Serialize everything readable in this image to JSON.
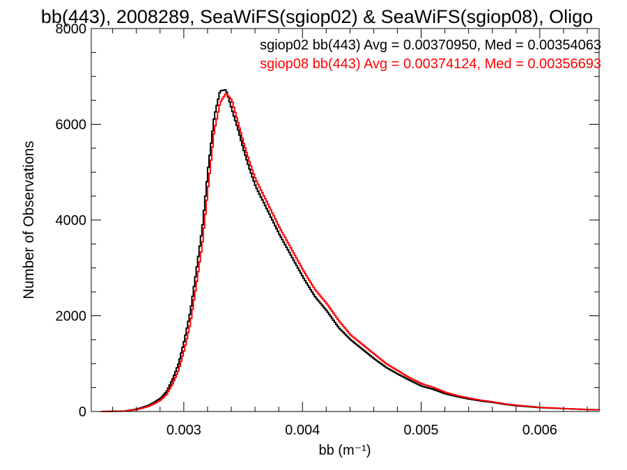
{
  "chart_data": {
    "type": "line",
    "title": "bb(443), 2008289, SeaWiFS(sgiop02) & SeaWiFS(sgiop08), Oligo",
    "xlabel": "bb (m⁻¹)",
    "ylabel": "Number of Observations",
    "xlim": [
      0.00222,
      0.0065
    ],
    "ylim": [
      0,
      8000
    ],
    "xticks": [
      0.003,
      0.004,
      0.005,
      0.006
    ],
    "xtick_labels": [
      "0.003",
      "0.004",
      "0.005",
      "0.006"
    ],
    "yticks": [
      0,
      2000,
      4000,
      6000,
      8000
    ],
    "ytick_labels": [
      "0",
      "2000",
      "4000",
      "6000",
      "8000"
    ],
    "grid": false,
    "legend_position": "top-right",
    "series": [
      {
        "name": "sgiop02",
        "label": "sgiop02 bb(443) Avg = 0.00370950, Med = 0.00354063",
        "color": "#000000",
        "x": [
          0.0023,
          0.0025,
          0.0026,
          0.0027,
          0.00275,
          0.0028,
          0.00285,
          0.0029,
          0.00295,
          0.003,
          0.00305,
          0.0031,
          0.00315,
          0.0032,
          0.00325,
          0.0033,
          0.00335,
          0.0034,
          0.00345,
          0.0035,
          0.00355,
          0.0036,
          0.0037,
          0.0038,
          0.0039,
          0.004,
          0.0041,
          0.0042,
          0.0043,
          0.0044,
          0.0045,
          0.0046,
          0.0047,
          0.0048,
          0.0049,
          0.005,
          0.0051,
          0.0052,
          0.0053,
          0.0054,
          0.0055,
          0.0056,
          0.0057,
          0.0058,
          0.0059,
          0.006,
          0.0061,
          0.0062,
          0.0063,
          0.0064,
          0.0065
        ],
        "values": [
          0,
          10,
          50,
          130,
          200,
          280,
          420,
          680,
          1000,
          1500,
          2100,
          2950,
          3850,
          5100,
          6150,
          6700,
          6720,
          6300,
          5900,
          5450,
          5050,
          4700,
          4200,
          3700,
          3250,
          2800,
          2400,
          2100,
          1750,
          1500,
          1300,
          1100,
          920,
          780,
          650,
          530,
          460,
          370,
          310,
          260,
          220,
          190,
          150,
          120,
          100,
          80,
          70,
          60,
          50,
          40,
          35
        ]
      },
      {
        "name": "sgiop08",
        "label": "sgiop08 bb(443) Avg = 0.00374124, Med = 0.00356693",
        "color": "#ff0000",
        "x": [
          0.0023,
          0.0025,
          0.0026,
          0.0027,
          0.00275,
          0.0028,
          0.00285,
          0.0029,
          0.00295,
          0.003,
          0.00305,
          0.0031,
          0.00315,
          0.0032,
          0.00325,
          0.0033,
          0.00335,
          0.0034,
          0.00345,
          0.0035,
          0.00355,
          0.0036,
          0.0037,
          0.0038,
          0.0039,
          0.004,
          0.0041,
          0.0042,
          0.0043,
          0.0044,
          0.0045,
          0.0046,
          0.0047,
          0.0048,
          0.0049,
          0.005,
          0.0051,
          0.0052,
          0.0053,
          0.0054,
          0.0055,
          0.0056,
          0.0057,
          0.0058,
          0.0059,
          0.006,
          0.0061,
          0.0062,
          0.0063,
          0.0064,
          0.0065
        ],
        "values": [
          0,
          8,
          40,
          110,
          170,
          240,
          360,
          580,
          860,
          1300,
          1850,
          2650,
          3500,
          4700,
          5850,
          6450,
          6650,
          6500,
          6050,
          5600,
          5200,
          4850,
          4350,
          3850,
          3400,
          2950,
          2550,
          2250,
          1900,
          1600,
          1400,
          1200,
          1000,
          850,
          700,
          580,
          500,
          400,
          330,
          280,
          235,
          200,
          160,
          130,
          110,
          85,
          75,
          62,
          52,
          42,
          36
        ]
      }
    ]
  }
}
